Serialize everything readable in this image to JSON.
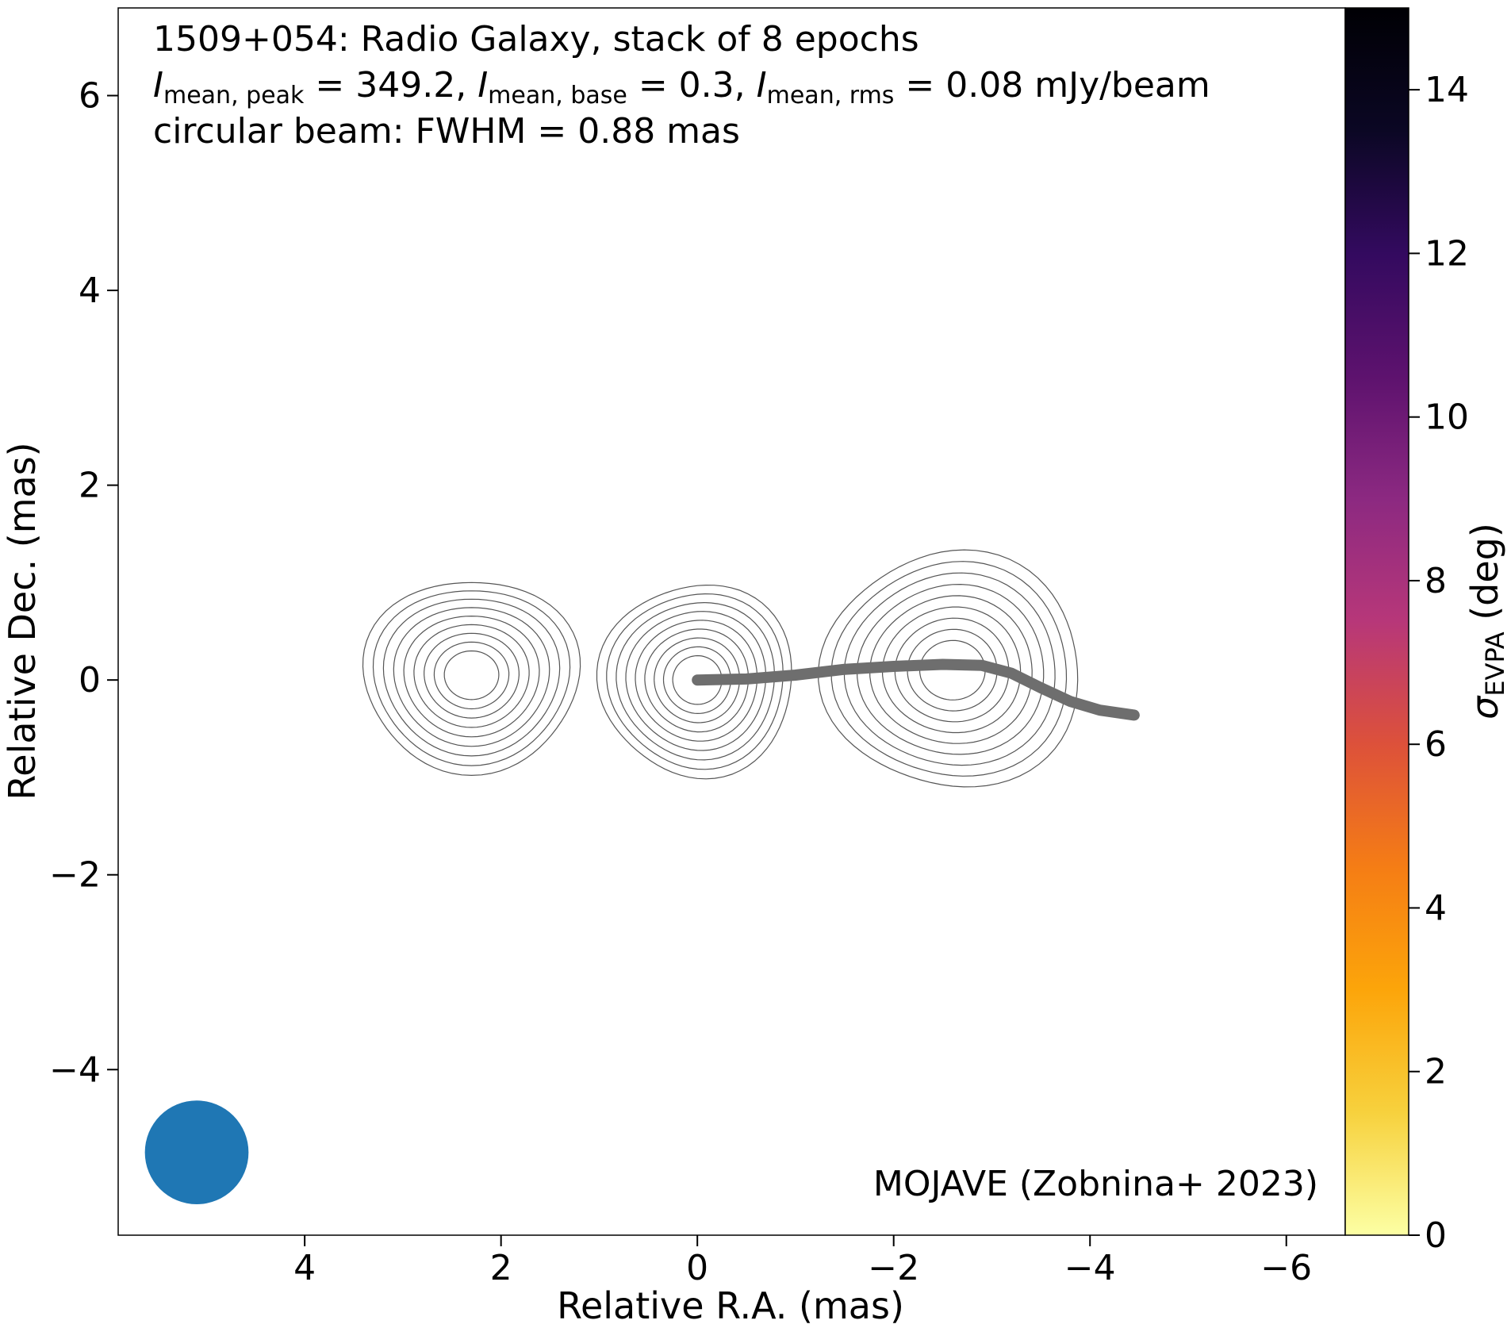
{
  "chart_data": {
    "type": "contour",
    "title_lines": [
      "1509+054: Radio Galaxy, stack of 8 epochs",
      {
        "segments": [
          {
            "t": "I",
            "italic": true
          },
          {
            "t": "mean, peak",
            "sub": true
          },
          {
            "t": " = 349.2, "
          },
          {
            "t": "I",
            "italic": true
          },
          {
            "t": "mean, base",
            "sub": true
          },
          {
            "t": " = 0.3, "
          },
          {
            "t": "I",
            "italic": true
          },
          {
            "t": "mean, rms",
            "sub": true
          },
          {
            "t": " = 0.08 mJy/beam"
          }
        ]
      },
      "circular beam: FWHM = 0.88 mas"
    ],
    "credit": "MOJAVE (Zobnina+ 2023)",
    "xlabel": "Relative R.A. (mas)",
    "ylabel": "Relative Dec. (mas)",
    "xlim": [
      5.9,
      -6.6
    ],
    "ylim": [
      -5.7,
      6.9
    ],
    "x_inverted": true,
    "xticks": [
      4,
      2,
      0,
      -2,
      -4,
      -6
    ],
    "yticks": [
      -4,
      -2,
      0,
      2,
      4,
      6
    ],
    "xtick_labels": [
      "4",
      "2",
      "0",
      "−2",
      "−4",
      "−6"
    ],
    "ytick_labels": [
      "−4",
      "−2",
      "0",
      "2",
      "4",
      "6"
    ],
    "colorbar": {
      "label_main": "σ",
      "label_sub": "EVPA",
      "label_unit": " (deg)",
      "range": [
        0,
        15
      ],
      "ticks": [
        0,
        2,
        4,
        6,
        8,
        10,
        12,
        14
      ],
      "tick_labels": [
        "0",
        "2",
        "4",
        "6",
        "8",
        "10",
        "12",
        "14"
      ],
      "colormap": "inferno_r",
      "stops": [
        "#fcffa4",
        "#f7d13d",
        "#fca50a",
        "#f57d15",
        "#dd513a",
        "#b73779",
        "#8c2981",
        "#5d126e",
        "#330a5f",
        "#0b0724",
        "#000004"
      ]
    },
    "beam": {
      "fwhm_mas": 0.88,
      "center": [
        5.1,
        -4.85
      ],
      "color": "#1f77b4"
    },
    "ridge_line": {
      "color": "#6e6e6e",
      "points": [
        [
          0.0,
          0.0
        ],
        [
          -0.5,
          0.01
        ],
        [
          -1.0,
          0.05
        ],
        [
          -1.5,
          0.11
        ],
        [
          -2.0,
          0.14
        ],
        [
          -2.5,
          0.16
        ],
        [
          -2.9,
          0.15
        ],
        [
          -3.2,
          0.07
        ],
        [
          -3.5,
          -0.08
        ],
        [
          -3.8,
          -0.22
        ],
        [
          -4.1,
          -0.31
        ],
        [
          -4.45,
          -0.36
        ]
      ]
    },
    "components": [
      {
        "x": 2.3,
        "y": 0.05,
        "peak": 1.0,
        "sx": 0.5,
        "sy": 0.45
      },
      {
        "x": 0.0,
        "y": 0.0,
        "peak": 1.0,
        "sx": 0.45,
        "sy": 0.45
      },
      {
        "x": -2.6,
        "y": 0.1,
        "peak": 1.0,
        "sx": 0.6,
        "sy": 0.55
      }
    ],
    "contour_levels_per_component": 9,
    "contour_color": "#555555"
  }
}
